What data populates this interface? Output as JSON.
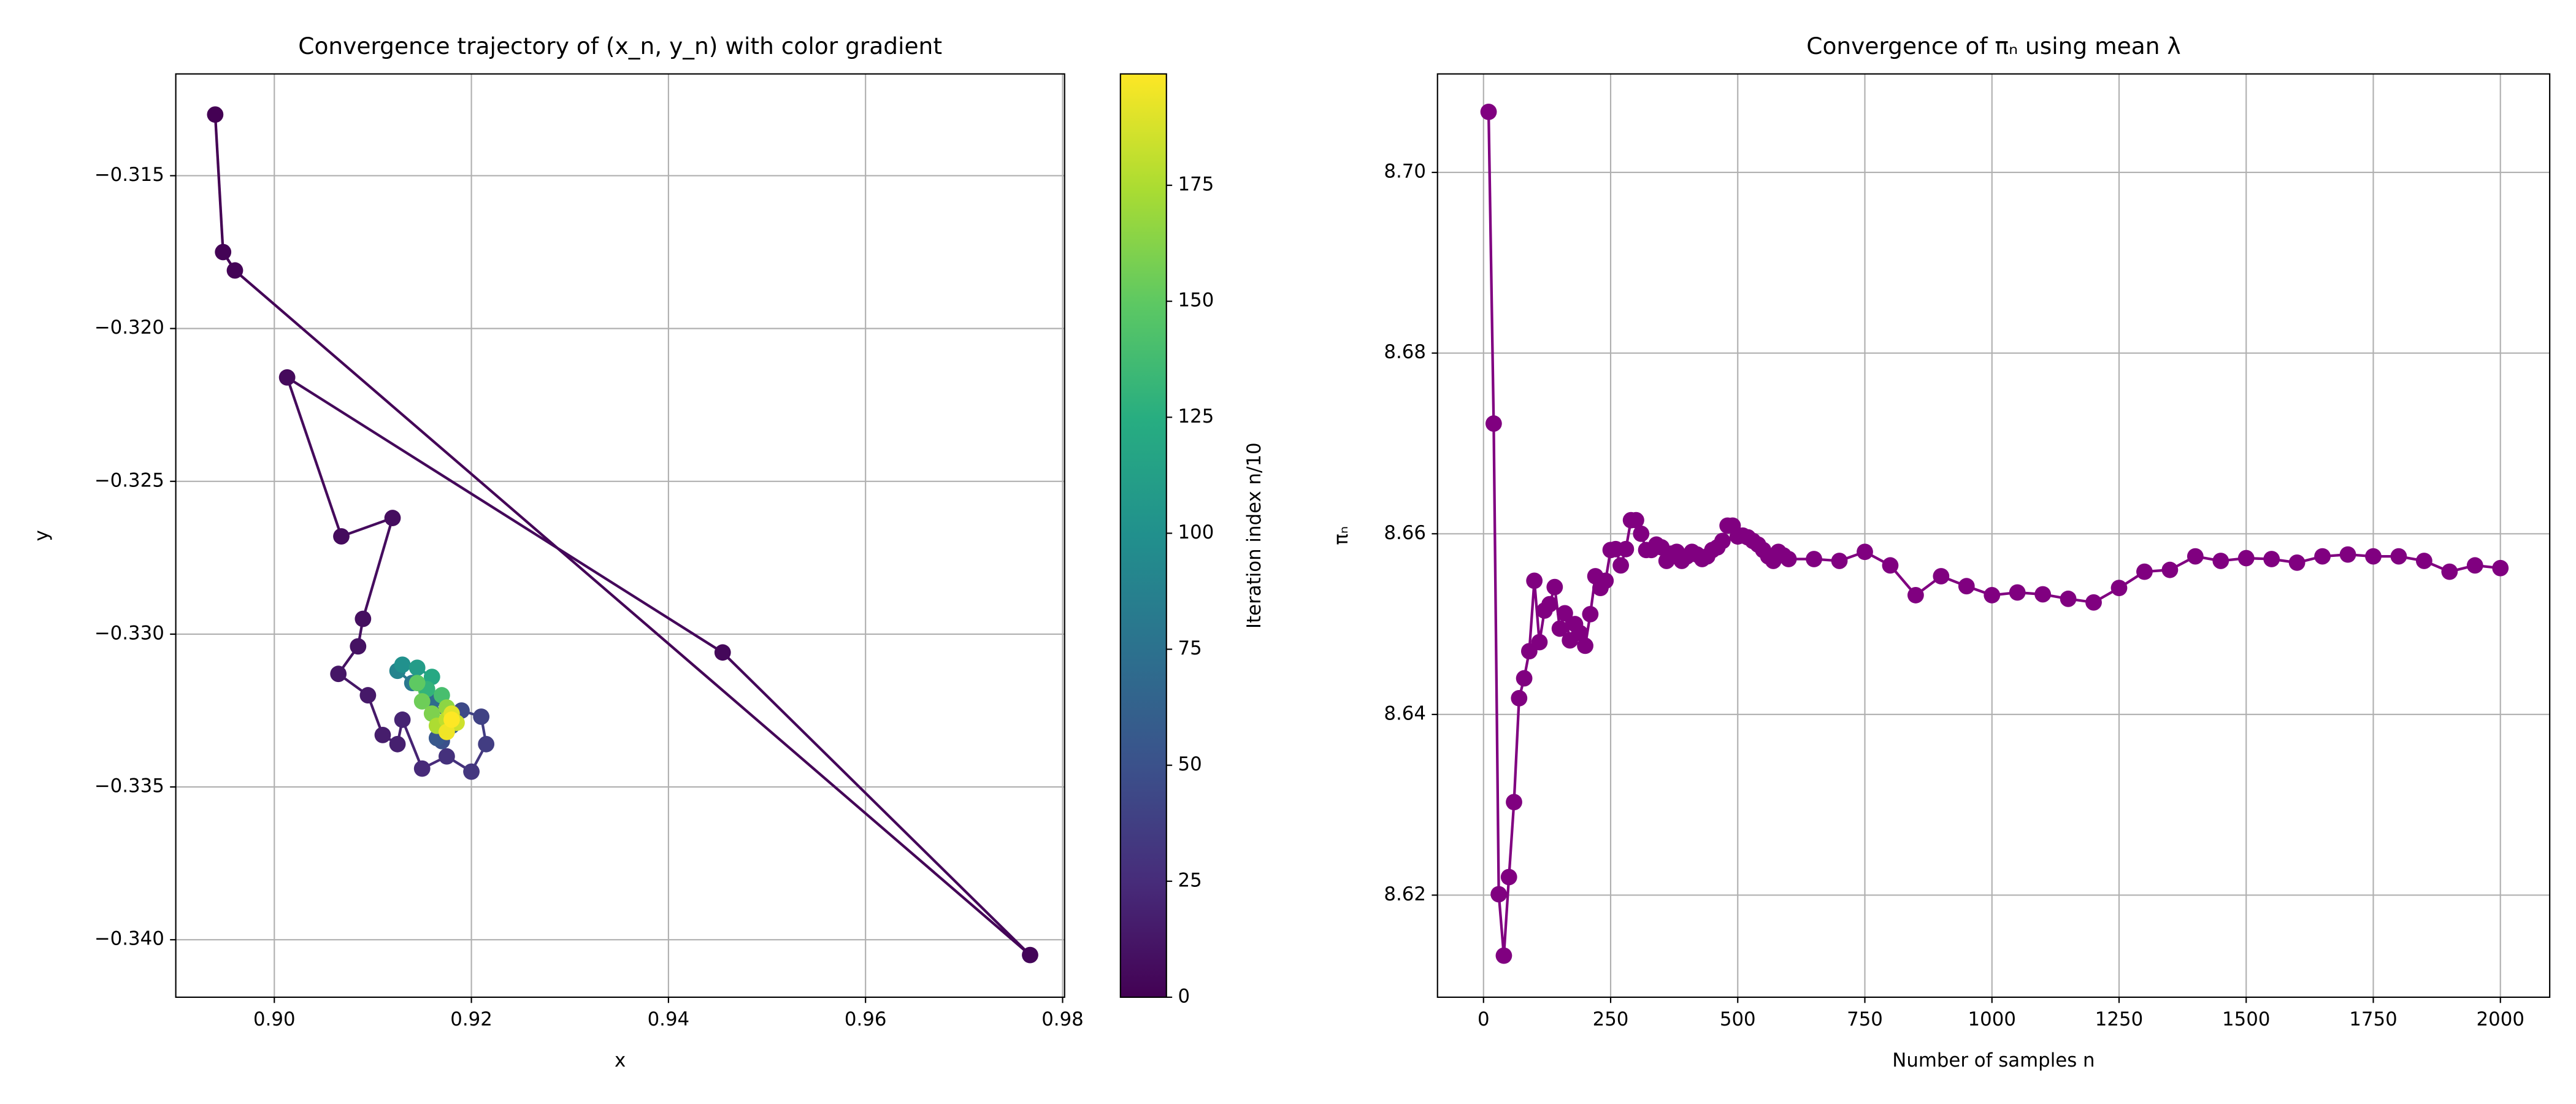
{
  "chart_data": [
    {
      "type": "scatter",
      "title": "Convergence trajectory of (x_n, y_n) with color gradient",
      "xlabel": "x",
      "ylabel": "y",
      "x": [
        0.894,
        0.8948,
        0.896,
        0.9767,
        0.9455,
        0.9013,
        0.9068,
        0.912,
        0.909,
        0.9085,
        0.9065,
        0.9095,
        0.911,
        0.9125,
        0.913,
        0.915,
        0.9175,
        0.92,
        0.9215,
        0.921,
        0.919,
        0.917,
        0.9165,
        0.918,
        0.916,
        0.914,
        0.9125,
        0.913,
        0.9145,
        0.916,
        0.9155,
        0.917,
        0.9145,
        0.915,
        0.916,
        0.9175,
        0.918,
        0.9165,
        0.9175,
        0.9185,
        0.918,
        0.9175,
        0.918
      ],
      "y": [
        -0.313,
        -0.3175,
        -0.3181,
        -0.3405,
        -0.3306,
        -0.3216,
        -0.3268,
        -0.3262,
        -0.3295,
        -0.3304,
        -0.3313,
        -0.332,
        -0.3333,
        -0.3336,
        -0.3328,
        -0.3344,
        -0.334,
        -0.3345,
        -0.3336,
        -0.3327,
        -0.3325,
        -0.3335,
        -0.3334,
        -0.333,
        -0.3322,
        -0.3316,
        -0.3312,
        -0.331,
        -0.3311,
        -0.3314,
        -0.3318,
        -0.332,
        -0.3316,
        -0.3322,
        -0.3326,
        -0.3324,
        -0.3327,
        -0.333,
        -0.3328,
        -0.3329,
        -0.3326,
        -0.3332,
        -0.3328
      ],
      "c": [
        0,
        1,
        2,
        3,
        4,
        5,
        6,
        7,
        8,
        10,
        12,
        14,
        16,
        18,
        20,
        24,
        28,
        32,
        36,
        40,
        45,
        50,
        55,
        60,
        70,
        80,
        90,
        100,
        110,
        120,
        130,
        140,
        150,
        155,
        160,
        165,
        170,
        175,
        180,
        185,
        190,
        195,
        199
      ],
      "colormap": "viridis",
      "connect": true,
      "grid": true,
      "xlim": [
        0.89,
        0.9802
      ],
      "xticks": [
        {
          "value": 0.9,
          "label": "0.90"
        },
        0.92,
        0.94,
        0.96,
        0.98
      ],
      "ylim": [
        -0.34188,
        -0.31167
      ],
      "yticks": [
        {
          "value": -0.34,
          "label": "−0.340"
        },
        {
          "value": -0.335,
          "label": "−0.335"
        },
        {
          "value": -0.33,
          "label": "−0.330"
        },
        {
          "value": -0.325,
          "label": "−0.325"
        },
        {
          "value": -0.32,
          "label": "−0.320"
        },
        {
          "value": -0.315,
          "label": "−0.315"
        }
      ],
      "colorbar": {
        "label": "Iteration index n/10",
        "clim": [
          0,
          199
        ],
        "ticks": [
          0,
          25,
          50,
          75,
          100,
          125,
          150,
          175
        ]
      }
    },
    {
      "type": "line",
      "title": "Convergence of πₙ using mean λ",
      "xlabel": "Number of samples n",
      "ylabel": "πₙ",
      "color": "#800080",
      "grid": true,
      "x": [
        10,
        20,
        30,
        40,
        50,
        60,
        70,
        80,
        90,
        100,
        110,
        120,
        130,
        140,
        150,
        160,
        170,
        180,
        190,
        200,
        210,
        220,
        230,
        240,
        250,
        260,
        270,
        280,
        290,
        300,
        310,
        320,
        330,
        340,
        350,
        360,
        370,
        380,
        390,
        400,
        410,
        420,
        430,
        440,
        450,
        460,
        470,
        480,
        490,
        500,
        510,
        520,
        530,
        540,
        550,
        560,
        570,
        580,
        590,
        600,
        650,
        700,
        750,
        800,
        850,
        900,
        950,
        1000,
        1050,
        1100,
        1150,
        1200,
        1250,
        1300,
        1350,
        1400,
        1450,
        1500,
        1550,
        1600,
        1650,
        1700,
        1750,
        1800,
        1850,
        1900,
        1950,
        2000
      ],
      "values": [
        8.7067,
        8.6722,
        8.6201,
        8.6133,
        8.622,
        8.6303,
        8.6418,
        8.644,
        8.647,
        8.6548,
        8.648,
        8.6515,
        8.6522,
        8.6541,
        8.6495,
        8.6512,
        8.6482,
        8.65,
        8.649,
        8.6476,
        8.6511,
        8.6553,
        8.654,
        8.6548,
        8.6582,
        8.6583,
        8.6565,
        8.6583,
        8.6615,
        8.6615,
        8.66,
        8.6582,
        8.6582,
        8.6588,
        8.6585,
        8.657,
        8.6578,
        8.658,
        8.657,
        8.6575,
        8.658,
        8.6577,
        8.6572,
        8.6575,
        8.6582,
        8.6585,
        8.6592,
        8.6609,
        8.6609,
        8.6597,
        8.6598,
        8.6596,
        8.6592,
        8.6588,
        8.6582,
        8.6575,
        8.657,
        8.658,
        8.6576,
        8.6572,
        8.6572,
        8.657,
        8.658,
        8.6565,
        8.6532,
        8.6553,
        8.6542,
        8.6532,
        8.6535,
        8.6533,
        8.6528,
        8.6524,
        8.654,
        8.6558,
        8.656,
        8.6575,
        8.657,
        8.6573,
        8.6572,
        8.6568,
        8.6575,
        8.6577,
        8.6575,
        8.6575,
        8.657,
        8.6558,
        8.6565,
        8.6562
      ],
      "xlim": [
        -90.5,
        2097
      ],
      "xticks": [
        0,
        250,
        500,
        750,
        1000,
        1250,
        1500,
        1750,
        2000
      ],
      "ylim": [
        8.6087,
        8.7109
      ],
      "yticks": [
        8.62,
        8.64,
        8.66,
        8.68,
        {
          "value": 8.7,
          "label": "8.70"
        }
      ]
    }
  ]
}
